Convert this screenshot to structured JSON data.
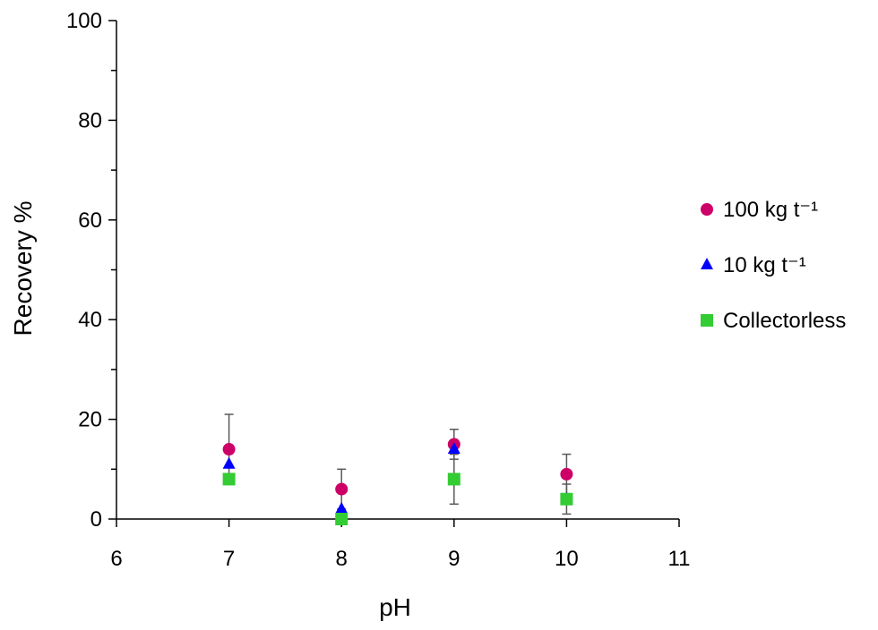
{
  "chart_data": {
    "type": "scatter",
    "xlabel": "pH",
    "ylabel": "Recovery %",
    "xlim": [
      6,
      11
    ],
    "ylim": [
      0,
      100
    ],
    "xticks": [
      "6",
      "7",
      "8",
      "9",
      "10",
      "11"
    ],
    "yticks": [
      "0",
      "20",
      "40",
      "60",
      "80",
      "100"
    ],
    "grid": false,
    "legend": "right",
    "series": [
      {
        "name": "100 kg t⁻¹",
        "marker": "circle",
        "color": "#cc0066",
        "points": [
          {
            "x": 7,
            "y": 14,
            "err": 7
          },
          {
            "x": 8,
            "y": 6,
            "err": 4
          },
          {
            "x": 9,
            "y": 15,
            "err": 3
          },
          {
            "x": 10,
            "y": 9,
            "err": 4
          }
        ]
      },
      {
        "name": "10 kg t⁻¹",
        "marker": "triangle",
        "color": "#0000ff",
        "points": [
          {
            "x": 7,
            "y": 11,
            "err": 0
          },
          {
            "x": 8,
            "y": 2,
            "err": 0
          },
          {
            "x": 9,
            "y": 14,
            "err": 0
          },
          {
            "x": 10,
            "y": 4,
            "err": 0
          }
        ]
      },
      {
        "name": "Collectorless",
        "marker": "square",
        "color": "#33cc33",
        "points": [
          {
            "x": 7,
            "y": 8,
            "err": 0
          },
          {
            "x": 8,
            "y": 0,
            "err": 0
          },
          {
            "x": 9,
            "y": 8,
            "err": 5
          },
          {
            "x": 10,
            "y": 4,
            "err": 3
          }
        ]
      }
    ]
  }
}
